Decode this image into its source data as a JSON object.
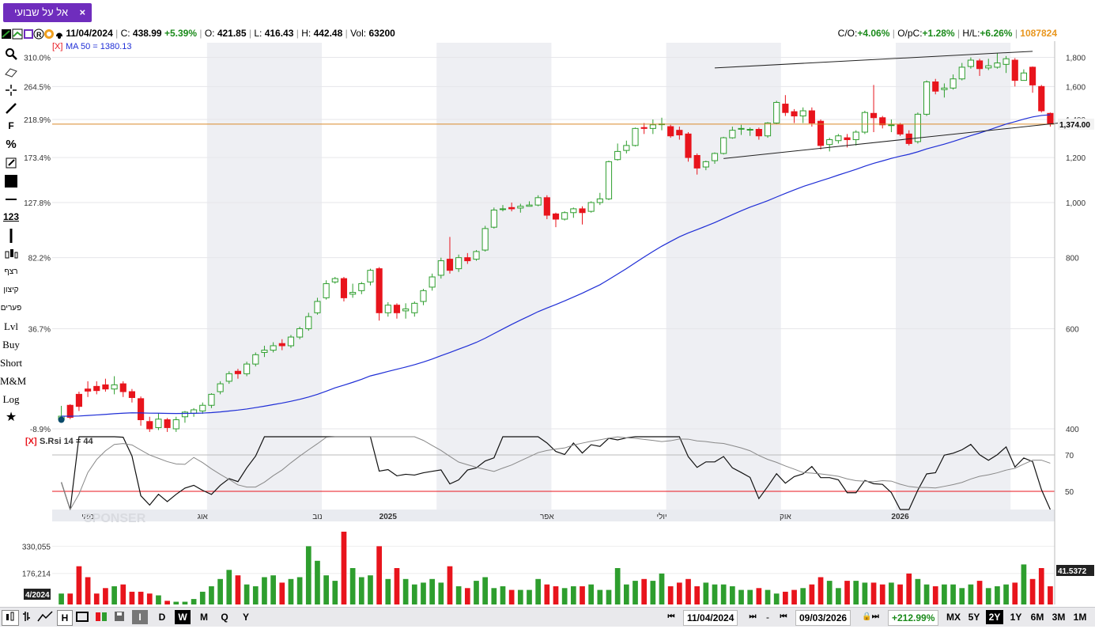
{
  "tab": {
    "label": "אל על שבועי",
    "close": "×"
  },
  "info": {
    "date": "11/04/2024",
    "close_label": "C:",
    "close": "438.99",
    "change": "+5.39%",
    "open_label": "O:",
    "open": "421.85",
    "low_label": "L:",
    "low": "416.43",
    "high_label": "H:",
    "high": "442.48",
    "vol_label": "Vol:",
    "vol": "63200",
    "co_label": "C/O:",
    "co": "+4.06%",
    "opc_label": "O/pC:",
    "opc": "+1.28%",
    "hl_label": "H/L:",
    "hl": "+6.26%",
    "volume_total": "1087824"
  },
  "left_tools": {
    "f": "F",
    "pct": "%",
    "num": "123",
    "t1": "רצף",
    "t2": "קיצון",
    "t3": "פערים",
    "lvl": "Lvl",
    "buy": "Buy",
    "short": "Short",
    "mm": "M&M",
    "log": "Log"
  },
  "indicators": {
    "ma": "MA 50 = 1380.13",
    "rsi": "S.Rsi 14 = 44",
    "x_tag": "[X]"
  },
  "price_axis_right": [
    "1,800",
    "1,600",
    "1,400",
    "1,200",
    "1,000",
    "800",
    "600",
    "400"
  ],
  "price_axis_left": [
    "310.0%",
    "264.5%",
    "218.9%",
    "173.4%",
    "127.8%",
    "82.2%",
    "36.7%",
    "-8.9%"
  ],
  "last_price_label": "1,374.00",
  "rsi_axis": [
    "70",
    "50"
  ],
  "time_labels": [
    "מאי",
    "אוג",
    "נוב",
    "2025",
    "אפר",
    "יולי",
    "אוק",
    "2026"
  ],
  "volume_axis": [
    "330,055",
    "176,214"
  ],
  "volume_last_label": "41.5372",
  "volume_left_date": "4/2024",
  "watermark": "SPONSER",
  "bottom": {
    "date_from": "11/04/2024",
    "date_to": "09/03/2026",
    "sep": "-",
    "change": "+212.99%",
    "period_i": "I",
    "period_d": "D",
    "period_w": "W",
    "period_m": "M",
    "period_q": "Q",
    "period_y": "Y",
    "chart_h": "H",
    "ranges": [
      "MX",
      "5Y",
      "2Y",
      "1Y",
      "6M",
      "3M",
      "1M"
    ],
    "selected_range": "2Y"
  },
  "colors": {
    "up": "#2e9e2e",
    "down": "#e8141c",
    "ma": "#1f2ed6",
    "accent": "#6f2dbd",
    "hline": "#d98a2a"
  },
  "chart_data": {
    "type": "candlestick",
    "title": "",
    "interval": "weekly",
    "x_range": [
      "2024-04-11",
      "2026-03-09"
    ],
    "y_scale": "log",
    "ylim": [
      400,
      1850
    ],
    "horizontal_line": 1374,
    "ma50_last": 1380.13,
    "rsi_last": 44,
    "rsi_levels": [
      70,
      50
    ],
    "volume_ticks": [
      330055,
      176214
    ],
    "candles": [
      [
        415,
        421,
        415,
        439
      ],
      [
        440,
        419,
        416,
        442
      ],
      [
        460,
        438,
        430,
        465
      ],
      [
        470,
        466,
        455,
        485
      ],
      [
        475,
        467,
        460,
        485
      ],
      [
        478,
        470,
        465,
        490
      ],
      [
        470,
        478,
        460,
        495
      ],
      [
        480,
        465,
        455,
        485
      ],
      [
        465,
        454,
        445,
        470
      ],
      [
        452,
        415,
        405,
        456
      ],
      [
        412,
        400,
        395,
        420
      ],
      [
        402,
        416,
        398,
        426
      ],
      [
        415,
        402,
        395,
        418
      ],
      [
        400,
        415,
        395,
        420
      ],
      [
        420,
        428,
        410,
        430
      ],
      [
        426,
        432,
        420,
        435
      ],
      [
        430,
        440,
        425,
        445
      ],
      [
        440,
        460,
        435,
        462
      ],
      [
        465,
        480,
        460,
        485
      ],
      [
        485,
        500,
        480,
        505
      ],
      [
        505,
        500,
        490,
        510
      ],
      [
        500,
        520,
        495,
        525
      ],
      [
        520,
        540,
        515,
        545
      ],
      [
        545,
        550,
        535,
        560
      ],
      [
        550,
        560,
        545,
        568
      ],
      [
        565,
        560,
        550,
        575
      ],
      [
        560,
        580,
        555,
        585
      ],
      [
        580,
        600,
        575,
        605
      ],
      [
        600,
        630,
        595,
        640
      ],
      [
        640,
        670,
        635,
        680
      ],
      [
        680,
        720,
        675,
        730
      ],
      [
        725,
        735,
        720,
        740
      ],
      [
        735,
        680,
        670,
        740
      ],
      [
        690,
        695,
        680,
        720
      ],
      [
        700,
        720,
        690,
        725
      ],
      [
        725,
        760,
        715,
        765
      ],
      [
        765,
        640,
        620,
        770
      ],
      [
        640,
        660,
        630,
        668
      ],
      [
        660,
        640,
        625,
        665
      ],
      [
        645,
        650,
        625,
        665
      ],
      [
        640,
        665,
        630,
        670
      ],
      [
        670,
        700,
        660,
        705
      ],
      [
        710,
        740,
        700,
        750
      ],
      [
        745,
        790,
        735,
        800
      ],
      [
        795,
        760,
        750,
        870
      ],
      [
        765,
        800,
        755,
        810
      ],
      [
        800,
        790,
        780,
        815
      ],
      [
        795,
        820,
        790,
        825
      ],
      [
        825,
        900,
        820,
        910
      ],
      [
        905,
        970,
        900,
        980
      ],
      [
        975,
        975,
        965,
        990
      ],
      [
        980,
        975,
        965,
        1000
      ],
      [
        978,
        985,
        960,
        995
      ],
      [
        985,
        990,
        985,
        1005
      ],
      [
        990,
        1020,
        985,
        1030
      ],
      [
        1020,
        950,
        935,
        1030
      ],
      [
        955,
        935,
        905,
        960
      ],
      [
        935,
        960,
        930,
        965
      ],
      [
        960,
        975,
        940,
        980
      ],
      [
        975,
        960,
        915,
        985
      ],
      [
        965,
        1000,
        960,
        1005
      ],
      [
        1000,
        1015,
        990,
        1040
      ],
      [
        1015,
        1180,
        1010,
        1185
      ],
      [
        1190,
        1230,
        1185,
        1270
      ],
      [
        1235,
        1260,
        1220,
        1285
      ],
      [
        1260,
        1350,
        1255,
        1355
      ],
      [
        1355,
        1350,
        1320,
        1380
      ],
      [
        1350,
        1370,
        1320,
        1400
      ],
      [
        1375,
        1375,
        1340,
        1410
      ],
      [
        1360,
        1310,
        1300,
        1370
      ],
      [
        1340,
        1315,
        1290,
        1360
      ],
      [
        1320,
        1200,
        1180,
        1330
      ],
      [
        1210,
        1150,
        1120,
        1220
      ],
      [
        1155,
        1180,
        1140,
        1185
      ],
      [
        1185,
        1220,
        1170,
        1225
      ],
      [
        1220,
        1300,
        1215,
        1305
      ],
      [
        1300,
        1340,
        1295,
        1360
      ],
      [
        1350,
        1350,
        1315,
        1370
      ],
      [
        1345,
        1345,
        1310,
        1355
      ],
      [
        1345,
        1310,
        1290,
        1355
      ],
      [
        1310,
        1380,
        1300,
        1385
      ],
      [
        1380,
        1500,
        1375,
        1510
      ],
      [
        1490,
        1440,
        1420,
        1545
      ],
      [
        1445,
        1420,
        1380,
        1460
      ],
      [
        1420,
        1450,
        1380,
        1470
      ],
      [
        1450,
        1380,
        1360,
        1470
      ],
      [
        1390,
        1260,
        1240,
        1400
      ],
      [
        1265,
        1290,
        1230,
        1300
      ],
      [
        1285,
        1310,
        1270,
        1320
      ],
      [
        1300,
        1290,
        1250,
        1320
      ],
      [
        1290,
        1330,
        1260,
        1340
      ],
      [
        1330,
        1440,
        1320,
        1450
      ],
      [
        1435,
        1410,
        1330,
        1610
      ],
      [
        1410,
        1370,
        1350,
        1420
      ],
      [
        1370,
        1370,
        1330,
        1400
      ],
      [
        1370,
        1320,
        1310,
        1380
      ],
      [
        1320,
        1270,
        1260,
        1340
      ],
      [
        1280,
        1430,
        1270,
        1440
      ],
      [
        1430,
        1630,
        1420,
        1640
      ],
      [
        1630,
        1570,
        1550,
        1650
      ],
      [
        1580,
        1590,
        1530,
        1620
      ],
      [
        1590,
        1650,
        1580,
        1680
      ],
      [
        1650,
        1730,
        1640,
        1760
      ],
      [
        1735,
        1780,
        1720,
        1800
      ],
      [
        1775,
        1720,
        1670,
        1790
      ],
      [
        1725,
        1740,
        1710,
        1790
      ],
      [
        1730,
        1760,
        1720,
        1830
      ],
      [
        1750,
        1790,
        1690,
        1810
      ],
      [
        1780,
        1640,
        1600,
        1795
      ],
      [
        1640,
        1690,
        1650,
        1715
      ],
      [
        1730,
        1610,
        1560,
        1735
      ],
      [
        1600,
        1450,
        1440,
        1610
      ],
      [
        1435,
        1374,
        1360,
        1440
      ]
    ]
  }
}
